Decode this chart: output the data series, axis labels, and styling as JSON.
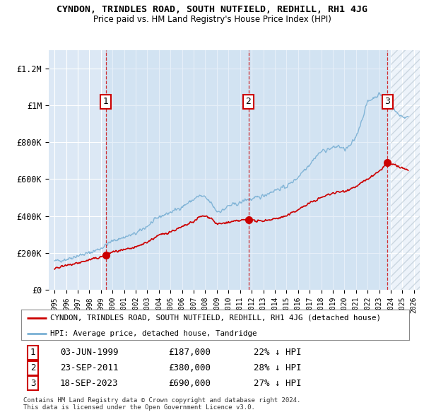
{
  "title": "CYNDON, TRINDLES ROAD, SOUTH NUTFIELD, REDHILL, RH1 4JG",
  "subtitle": "Price paid vs. HM Land Registry's House Price Index (HPI)",
  "legend_line1": "CYNDON, TRINDLES ROAD, SOUTH NUTFIELD, REDHILL, RH1 4JG (detached house)",
  "legend_line2": "HPI: Average price, detached house, Tandridge",
  "sale1_label": "1",
  "sale1_date": "03-JUN-1999",
  "sale1_price": "£187,000",
  "sale1_hpi": "22% ↓ HPI",
  "sale1_year": 1999.42,
  "sale1_value": 187000,
  "sale2_label": "2",
  "sale2_date": "23-SEP-2011",
  "sale2_price": "£380,000",
  "sale2_hpi": "28% ↓ HPI",
  "sale2_year": 2011.72,
  "sale2_value": 380000,
  "sale3_label": "3",
  "sale3_date": "18-SEP-2023",
  "sale3_price": "£690,000",
  "sale3_hpi": "27% ↓ HPI",
  "sale3_year": 2023.72,
  "sale3_value": 690000,
  "red_color": "#cc0000",
  "blue_color": "#7ab0d4",
  "bg_color": "#ffffff",
  "plot_bg_color": "#dce8f5",
  "grid_color": "#ffffff",
  "hatch_color": "#c8d8e8",
  "footnote": "Contains HM Land Registry data © Crown copyright and database right 2024.\nThis data is licensed under the Open Government Licence v3.0.",
  "ylim_max": 1300000,
  "xmin": 1994.5,
  "xmax": 2026.5
}
